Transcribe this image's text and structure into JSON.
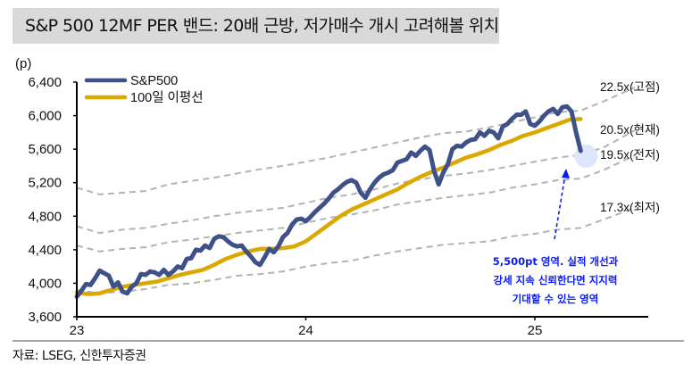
{
  "title": "S&P 500 12MF PER 밴드: 20배 근방, 저가매수 개시 고려해볼 위치",
  "source": "자료: LSEG, 신한투자증권",
  "colors": {
    "sp500": "#3f5189",
    "ma100": "#dba800",
    "band": "#b3b3b3",
    "annotation": "#0a1aff",
    "highlight": "#dfe6fb",
    "title_bg": "#d9d9d9"
  },
  "chart_data": {
    "type": "line",
    "title": "S&P 500 12MF PER 밴드: 20배 근방, 저가매수 개시 고려해볼 위치",
    "ylabel": "(p)",
    "xlabel": "",
    "ylim": [
      3600,
      6400
    ],
    "yticks": [
      3600,
      4000,
      4400,
      4800,
      5200,
      5600,
      6000,
      6400
    ],
    "ytick_labels": [
      "3,600",
      "4,000",
      "4,400",
      "4,800",
      "5,200",
      "5,600",
      "6,000",
      "6,400"
    ],
    "xlim": [
      2023.0,
      2025.5
    ],
    "xticks": [
      2023,
      2024,
      2025
    ],
    "xtick_labels": [
      "23",
      "24",
      "25"
    ],
    "grid": false,
    "legend_position": "top-left",
    "legend": [
      "S&P500",
      "100일 이평선"
    ],
    "series": [
      {
        "name": "S&P500",
        "style": "solid-thick",
        "x": [
          2023.0,
          2023.02,
          2023.04,
          2023.06,
          2023.08,
          2023.1,
          2023.12,
          2023.14,
          2023.16,
          2023.18,
          2023.2,
          2023.22,
          2023.24,
          2023.26,
          2023.28,
          2023.3,
          2023.32,
          2023.34,
          2023.36,
          2023.38,
          2023.4,
          2023.42,
          2023.44,
          2023.46,
          2023.48,
          2023.5,
          2023.52,
          2023.54,
          2023.56,
          2023.58,
          2023.6,
          2023.62,
          2023.64,
          2023.66,
          2023.68,
          2023.7,
          2023.72,
          2023.74,
          2023.76,
          2023.78,
          2023.8,
          2023.82,
          2023.84,
          2023.86,
          2023.88,
          2023.9,
          2023.92,
          2023.94,
          2023.96,
          2023.98,
          2024.0,
          2024.02,
          2024.04,
          2024.06,
          2024.08,
          2024.1,
          2024.12,
          2024.14,
          2024.16,
          2024.18,
          2024.2,
          2024.22,
          2024.24,
          2024.26,
          2024.28,
          2024.3,
          2024.32,
          2024.34,
          2024.36,
          2024.38,
          2024.4,
          2024.42,
          2024.44,
          2024.46,
          2024.48,
          2024.5,
          2024.52,
          2024.54,
          2024.56,
          2024.58,
          2024.6,
          2024.62,
          2024.64,
          2024.66,
          2024.68,
          2024.7,
          2024.72,
          2024.74,
          2024.76,
          2024.78,
          2024.8,
          2024.82,
          2024.84,
          2024.86,
          2024.88,
          2024.9,
          2024.92,
          2024.94,
          2024.96,
          2024.98,
          2025.0,
          2025.02,
          2025.04,
          2025.06,
          2025.08,
          2025.1,
          2025.12,
          2025.14,
          2025.16,
          2025.18,
          2025.2
        ],
        "values": [
          3840,
          3910,
          3990,
          3980,
          4060,
          4150,
          4120,
          4090,
          3960,
          4010,
          3900,
          3880,
          3960,
          4000,
          4110,
          4100,
          4140,
          4130,
          4100,
          4160,
          4100,
          4140,
          4200,
          4180,
          4290,
          4300,
          4400,
          4390,
          4450,
          4420,
          4530,
          4560,
          4550,
          4500,
          4460,
          4440,
          4450,
          4380,
          4320,
          4250,
          4220,
          4310,
          4410,
          4370,
          4440,
          4550,
          4600,
          4700,
          4760,
          4770,
          4740,
          4790,
          4850,
          4900,
          4950,
          5010,
          5080,
          5120,
          5170,
          5210,
          5230,
          5200,
          5080,
          5020,
          5120,
          5200,
          5260,
          5300,
          5320,
          5350,
          5440,
          5460,
          5480,
          5560,
          5520,
          5580,
          5630,
          5590,
          5340,
          5180,
          5320,
          5420,
          5600,
          5640,
          5630,
          5680,
          5710,
          5720,
          5800,
          5760,
          5820,
          5800,
          5730,
          5870,
          5900,
          5960,
          6010,
          6010,
          6050,
          5900,
          5880,
          5930,
          6000,
          6050,
          6080,
          6020,
          6100,
          6110,
          6050,
          5800,
          5580
        ],
        "color": "#3f5189"
      },
      {
        "name": "100일 이평선",
        "style": "solid-thick",
        "x": [
          2023.0,
          2023.05,
          2023.1,
          2023.15,
          2023.2,
          2023.25,
          2023.3,
          2023.35,
          2023.4,
          2023.45,
          2023.5,
          2023.55,
          2023.6,
          2023.65,
          2023.7,
          2023.75,
          2023.8,
          2023.85,
          2023.9,
          2023.95,
          2024.0,
          2024.05,
          2024.1,
          2024.15,
          2024.2,
          2024.25,
          2024.3,
          2024.35,
          2024.4,
          2024.45,
          2024.5,
          2024.55,
          2024.6,
          2024.65,
          2024.7,
          2024.75,
          2024.8,
          2024.85,
          2024.9,
          2024.95,
          2025.0,
          2025.05,
          2025.1,
          2025.15,
          2025.2
        ],
        "values": [
          3890,
          3870,
          3880,
          3920,
          3960,
          3980,
          4000,
          4020,
          4060,
          4100,
          4130,
          4160,
          4220,
          4290,
          4340,
          4380,
          4410,
          4410,
          4420,
          4440,
          4500,
          4600,
          4700,
          4800,
          4880,
          4940,
          5000,
          5060,
          5120,
          5200,
          5270,
          5330,
          5380,
          5440,
          5500,
          5540,
          5590,
          5650,
          5700,
          5760,
          5800,
          5850,
          5900,
          5950,
          5960
        ],
        "color": "#dba800"
      }
    ],
    "per_bands": [
      {
        "label": "22.5x(고점)",
        "multiple": 22.5,
        "x": [
          2023.0,
          2023.1,
          2023.2,
          2023.3,
          2023.4,
          2023.5,
          2023.6,
          2023.7,
          2023.8,
          2023.9,
          2024.0,
          2024.1,
          2024.2,
          2024.3,
          2024.4,
          2024.5,
          2024.6,
          2024.7,
          2024.8,
          2024.9,
          2025.0,
          2025.1,
          2025.2,
          2025.3
        ],
        "values": [
          5140,
          5060,
          5080,
          5100,
          5180,
          5220,
          5260,
          5310,
          5360,
          5400,
          5450,
          5500,
          5560,
          5620,
          5680,
          5740,
          5790,
          5810,
          5860,
          5920,
          5980,
          6040,
          6060,
          6170
        ]
      },
      {
        "label": "20.5x(현재)",
        "multiple": 20.5,
        "x": [
          2023.0,
          2023.1,
          2023.2,
          2023.3,
          2023.4,
          2023.5,
          2023.6,
          2023.7,
          2023.8,
          2023.9,
          2024.0,
          2024.1,
          2024.2,
          2024.3,
          2024.4,
          2024.5,
          2024.6,
          2024.7,
          2024.8,
          2024.9,
          2025.0,
          2025.1,
          2025.2,
          2025.3
        ],
        "values": [
          4680,
          4600,
          4640,
          4660,
          4710,
          4750,
          4800,
          4840,
          4870,
          4900,
          4960,
          5020,
          5060,
          5120,
          5190,
          5240,
          5280,
          5310,
          5350,
          5400,
          5450,
          5500,
          5530,
          5620
        ]
      },
      {
        "label": "19.5x(전저)",
        "multiple": 19.5,
        "x": [
          2023.0,
          2023.1,
          2023.2,
          2023.3,
          2023.4,
          2023.5,
          2023.6,
          2023.7,
          2023.8,
          2023.9,
          2024.0,
          2024.1,
          2024.2,
          2024.3,
          2024.4,
          2024.5,
          2024.6,
          2024.7,
          2024.8,
          2024.9,
          2025.0,
          2025.1,
          2025.2,
          2025.3
        ],
        "values": [
          4450,
          4380,
          4410,
          4430,
          4490,
          4520,
          4560,
          4600,
          4630,
          4660,
          4720,
          4780,
          4820,
          4870,
          4940,
          4980,
          5020,
          5050,
          5080,
          5140,
          5180,
          5230,
          5250,
          5350
        ]
      },
      {
        "label": "17.3x(최저)",
        "multiple": 17.3,
        "x": [
          2023.0,
          2023.1,
          2023.2,
          2023.3,
          2023.4,
          2023.5,
          2023.6,
          2023.7,
          2023.8,
          2023.9,
          2024.0,
          2024.1,
          2024.2,
          2024.3,
          2024.4,
          2024.5,
          2024.6,
          2024.7,
          2024.8,
          2024.9,
          2025.0,
          2025.1,
          2025.2,
          2025.3
        ],
        "values": [
          3920,
          3880,
          3900,
          3930,
          3980,
          4000,
          4040,
          4090,
          4110,
          4140,
          4200,
          4240,
          4270,
          4330,
          4380,
          4420,
          4460,
          4480,
          4500,
          4560,
          4590,
          4640,
          4660,
          4760
        ]
      }
    ],
    "annotations": [
      {
        "type": "highlight-circle",
        "x": 2025.2,
        "y": 5500
      },
      {
        "type": "dashed-arrow",
        "from_x": 2025.15,
        "from_y": 4400,
        "to_x": 2025.19,
        "to_y": 5380
      },
      {
        "type": "text",
        "lines": [
          "5,500pt 영역. 실적 개선과",
          "강세 지속 신뢰한다면 지지력",
          "기대할 수 있는 영역"
        ]
      }
    ]
  }
}
